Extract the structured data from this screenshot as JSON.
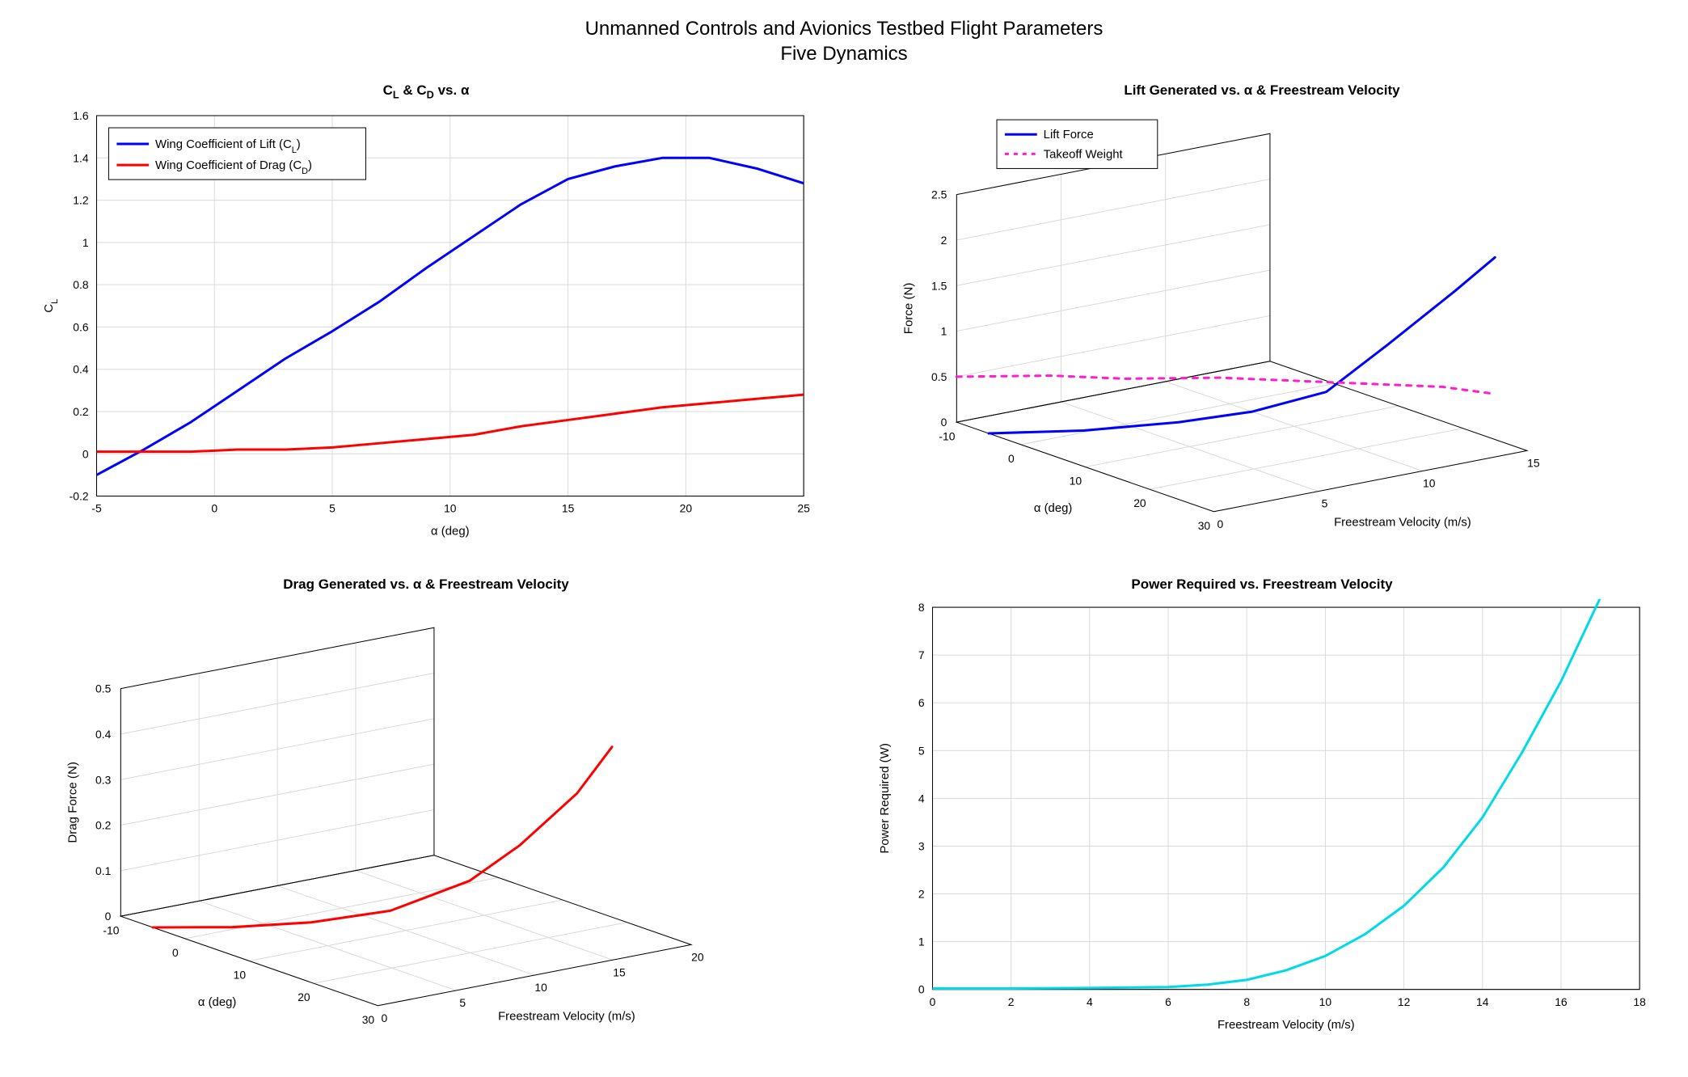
{
  "main_title_line1": "Unmanned Controls and Avionics Testbed Flight Parameters",
  "main_title_line2": "Five Dynamics",
  "colors": {
    "background": "#ffffff",
    "grid": "#d9d9d9",
    "axis": "#000000",
    "blue": "#0000ff",
    "red": "#ff0000",
    "magenta": "#ff1dce",
    "cyan": "#00d9e6"
  },
  "panel1": {
    "title_html": "C<sub>L</sub> & C<sub>D</sub> vs. α",
    "xlabel": "α (deg)",
    "ylabel_html": "C<sub>L</sub>",
    "xlim": [
      -5,
      25
    ],
    "ylim": [
      -0.2,
      1.6
    ],
    "xticks": [
      -5,
      0,
      5,
      10,
      15,
      20,
      25
    ],
    "yticks": [
      -0.2,
      0,
      0.2,
      0.4,
      0.6,
      0.8,
      1,
      1.2,
      1.4,
      1.6
    ],
    "legend": {
      "items": [
        {
          "label_html": "Wing Coefficient of Lift (C<sub>L</sub>)",
          "color": "#0000ff",
          "width": 3
        },
        {
          "label_html": "Wing Coefficient of Drag (C<sub>D</sub>)",
          "color": "#ff0000",
          "width": 3
        }
      ]
    },
    "series": [
      {
        "color": "#0000ff",
        "width": 3,
        "points": [
          [
            -5,
            -0.1
          ],
          [
            -3,
            0.02
          ],
          [
            -1,
            0.15
          ],
          [
            1,
            0.3
          ],
          [
            3,
            0.45
          ],
          [
            5,
            0.58
          ],
          [
            7,
            0.72
          ],
          [
            9,
            0.88
          ],
          [
            11,
            1.03
          ],
          [
            13,
            1.18
          ],
          [
            15,
            1.3
          ],
          [
            17,
            1.36
          ],
          [
            19,
            1.4
          ],
          [
            21,
            1.4
          ],
          [
            23,
            1.35
          ],
          [
            25,
            1.28
          ]
        ]
      },
      {
        "color": "#ff0000",
        "width": 3,
        "points": [
          [
            -5,
            0.01
          ],
          [
            -3,
            0.01
          ],
          [
            -1,
            0.01
          ],
          [
            1,
            0.02
          ],
          [
            3,
            0.02
          ],
          [
            5,
            0.03
          ],
          [
            7,
            0.05
          ],
          [
            9,
            0.07
          ],
          [
            11,
            0.09
          ],
          [
            13,
            0.13
          ],
          [
            15,
            0.16
          ],
          [
            17,
            0.19
          ],
          [
            19,
            0.22
          ],
          [
            21,
            0.24
          ],
          [
            23,
            0.26
          ],
          [
            25,
            0.28
          ]
        ]
      }
    ]
  },
  "panel2": {
    "title": "Lift Generated vs. α & Freestream Velocity",
    "xlabel": "α (deg)",
    "ylabel": "Freestream Velocity (m/s)",
    "zlabel": "Force (N)",
    "x_range": [
      -10,
      30
    ],
    "y_range": [
      0,
      15
    ],
    "z_range": [
      0,
      2.5
    ],
    "xticks": [
      -10,
      0,
      10,
      20,
      30
    ],
    "yticks": [
      0,
      5,
      10,
      15
    ],
    "zticks": [
      0,
      0.5,
      1,
      1.5,
      2,
      2.5
    ],
    "legend": {
      "items": [
        {
          "label": "Lift Force",
          "color": "#0000ff",
          "width": 3,
          "dash": false
        },
        {
          "label": "Takeoff Weight",
          "color": "#ff1dce",
          "width": 3,
          "dash": true
        }
      ]
    },
    "curves": [
      {
        "color": "#0000ff",
        "width": 3,
        "dash": false,
        "points3d": [
          [
            -5,
            0,
            0.0
          ],
          [
            0,
            3,
            0.02
          ],
          [
            5,
            6,
            0.1
          ],
          [
            10,
            8,
            0.25
          ],
          [
            15,
            10,
            0.5
          ],
          [
            18,
            12,
            1.0
          ],
          [
            22,
            14,
            1.6
          ],
          [
            25,
            15,
            2.0
          ]
        ]
      },
      {
        "color": "#ff1dce",
        "width": 3,
        "dash": true,
        "points3d": [
          [
            -10,
            0,
            0.5
          ],
          [
            -5,
            3,
            0.5
          ],
          [
            0,
            5,
            0.5
          ],
          [
            5,
            8,
            0.5
          ],
          [
            10,
            10,
            0.5
          ],
          [
            15,
            12,
            0.5
          ],
          [
            20,
            14,
            0.5
          ],
          [
            25,
            15,
            0.5
          ]
        ]
      }
    ]
  },
  "panel3": {
    "title": "Drag Generated vs. α & Freestream Velocity",
    "xlabel": "α (deg)",
    "ylabel": "Freestream Velocity (m/s)",
    "zlabel": "Drag Force (N)",
    "x_range": [
      -10,
      30
    ],
    "y_range": [
      0,
      20
    ],
    "z_range": [
      0,
      0.5
    ],
    "xticks": [
      -10,
      0,
      10,
      20,
      30
    ],
    "yticks": [
      0,
      5,
      10,
      15,
      20
    ],
    "zticks": [
      0,
      0.1,
      0.2,
      0.3,
      0.4,
      0.5
    ],
    "curves": [
      {
        "color": "#ff0000",
        "width": 3,
        "dash": false,
        "points3d": [
          [
            -5,
            0,
            0.0
          ],
          [
            0,
            3,
            0.005
          ],
          [
            5,
            6,
            0.02
          ],
          [
            10,
            9,
            0.05
          ],
          [
            15,
            12,
            0.12
          ],
          [
            18,
            14,
            0.2
          ],
          [
            22,
            16,
            0.32
          ],
          [
            25,
            17,
            0.43
          ]
        ]
      }
    ]
  },
  "panel4": {
    "title": "Power Required vs. Freestream Velocity",
    "xlabel": "Freestream Velocity (m/s)",
    "ylabel": "Power Required (W)",
    "xlim": [
      0,
      18
    ],
    "ylim": [
      0,
      8
    ],
    "xticks": [
      0,
      2,
      4,
      6,
      8,
      10,
      12,
      14,
      16,
      18
    ],
    "yticks": [
      0,
      1,
      2,
      3,
      4,
      5,
      6,
      7,
      8
    ],
    "series": [
      {
        "color": "#00d9e6",
        "width": 3,
        "points": [
          [
            0,
            0.02
          ],
          [
            2,
            0.02
          ],
          [
            4,
            0.03
          ],
          [
            6,
            0.05
          ],
          [
            7,
            0.1
          ],
          [
            8,
            0.2
          ],
          [
            9,
            0.4
          ],
          [
            10,
            0.7
          ],
          [
            11,
            1.15
          ],
          [
            12,
            1.75
          ],
          [
            13,
            2.55
          ],
          [
            14,
            3.6
          ],
          [
            15,
            4.95
          ],
          [
            16,
            6.45
          ],
          [
            17,
            8.2
          ]
        ]
      }
    ]
  }
}
